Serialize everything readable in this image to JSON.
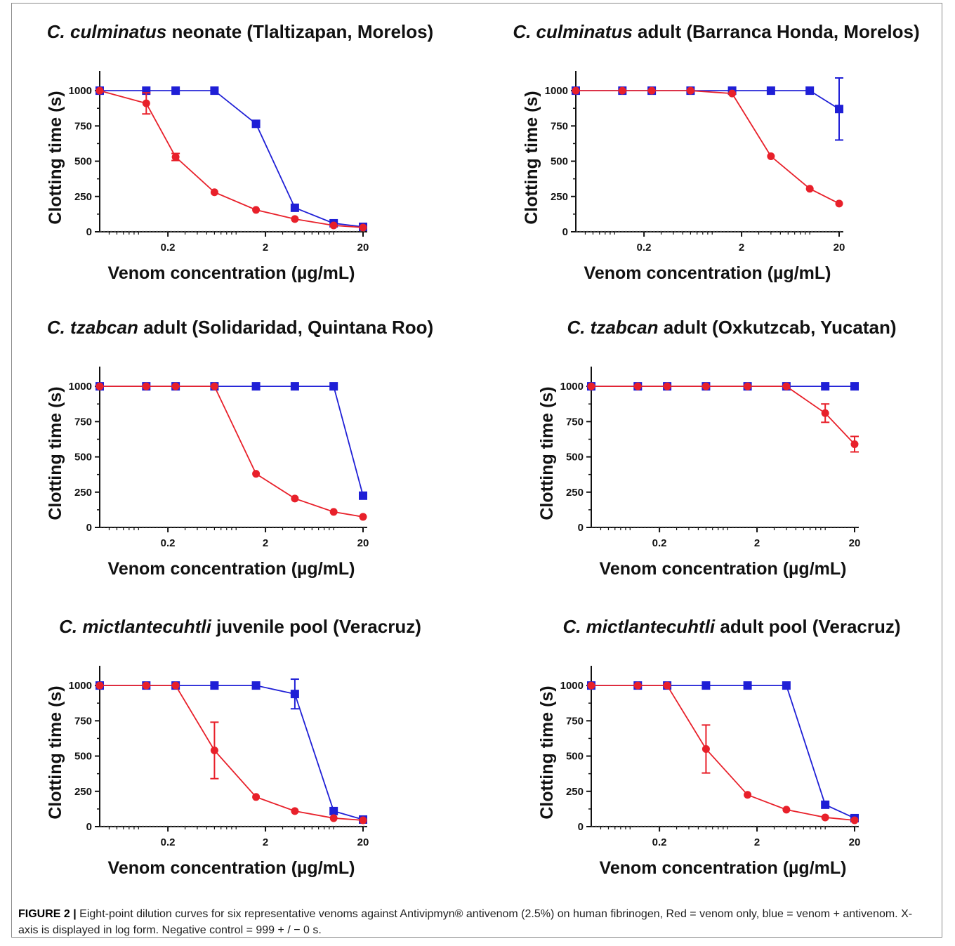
{
  "figure_label": "FIGURE 2 |",
  "caption": "Eight-point dilution curves for six representative venoms against Antivipmyn® antivenom (2.5%) on human fibrinogen, Red = venom only, blue = venom + antivenom. X-axis is displayed in log form. Negative control = 999 + / − 0 s.",
  "colors": {
    "venom_only": "#e8202a",
    "venom_plus_antivenom": "#1f1fd6",
    "axis": "#111111"
  },
  "chart_data": [
    {
      "type": "line",
      "title_italic": "C. culminatus",
      "title_rest": " neonate (Tlaltizapan, Morelos)",
      "xlabel": "Venom concentration (µg/mL)",
      "ylabel": "Clotting time (s)",
      "x_scale": "log",
      "xticks": [
        "0.2",
        "2",
        "20"
      ],
      "yticks": [
        "0",
        "250",
        "500",
        "750",
        "1000"
      ],
      "ylim": [
        0,
        1100
      ],
      "xlim": [
        0.04,
        20
      ],
      "series": [
        {
          "color": "venom_only",
          "x": [
            0.04,
            0.12,
            0.24,
            0.6,
            1.6,
            4,
            10,
            20
          ],
          "y": [
            1000,
            910,
            530,
            280,
            155,
            90,
            45,
            30
          ],
          "err": [
            0,
            75,
            25,
            0,
            0,
            0,
            0,
            0
          ]
        },
        {
          "color": "venom_plus_antivenom",
          "x": [
            0.04,
            0.12,
            0.24,
            0.6,
            1.6,
            4,
            10,
            20
          ],
          "y": [
            1000,
            1000,
            1000,
            1000,
            765,
            170,
            60,
            35
          ],
          "err": [
            0,
            0,
            0,
            0,
            0,
            0,
            0,
            0
          ]
        }
      ]
    },
    {
      "type": "line",
      "title_italic": "C. culminatus",
      "title_rest": " adult (Barranca Honda, Morelos)",
      "xlabel": "Venom concentration (µg/mL)",
      "ylabel": "Clotting time (s)",
      "x_scale": "log",
      "xticks": [
        "0.2",
        "2",
        "20"
      ],
      "yticks": [
        "0",
        "250",
        "500",
        "750",
        "1000"
      ],
      "ylim": [
        0,
        1100
      ],
      "xlim": [
        0.04,
        20
      ],
      "series": [
        {
          "color": "venom_only",
          "x": [
            0.04,
            0.12,
            0.24,
            0.6,
            1.6,
            4,
            10,
            20
          ],
          "y": [
            1000,
            1000,
            1000,
            1000,
            980,
            535,
            305,
            200
          ],
          "err": [
            0,
            0,
            0,
            0,
            0,
            0,
            0,
            0
          ]
        },
        {
          "color": "venom_plus_antivenom",
          "x": [
            0.04,
            0.12,
            0.24,
            0.6,
            1.6,
            4,
            10,
            20
          ],
          "y": [
            1000,
            1000,
            1000,
            1000,
            1000,
            1000,
            1000,
            870
          ],
          "err": [
            0,
            0,
            0,
            0,
            0,
            0,
            0,
            220
          ]
        }
      ]
    },
    {
      "type": "line",
      "title_italic": "C. tzabcan",
      "title_rest": " adult (Solidaridad, Quintana Roo)",
      "xlabel": "Venom concentration (µg/mL)",
      "ylabel": "Clotting time (s)",
      "x_scale": "log",
      "xticks": [
        "0.2",
        "2",
        "20"
      ],
      "yticks": [
        "0",
        "250",
        "500",
        "750",
        "1000"
      ],
      "ylim": [
        0,
        1100
      ],
      "xlim": [
        0.04,
        20
      ],
      "series": [
        {
          "color": "venom_only",
          "x": [
            0.04,
            0.12,
            0.24,
            0.6,
            1.6,
            4,
            10,
            20
          ],
          "y": [
            1000,
            1000,
            1000,
            1000,
            380,
            205,
            110,
            75
          ],
          "err": [
            0,
            0,
            0,
            0,
            0,
            0,
            0,
            0
          ]
        },
        {
          "color": "venom_plus_antivenom",
          "x": [
            0.04,
            0.12,
            0.24,
            0.6,
            1.6,
            4,
            10,
            20
          ],
          "y": [
            1000,
            1000,
            1000,
            1000,
            1000,
            1000,
            1000,
            225
          ],
          "err": [
            0,
            0,
            0,
            0,
            0,
            0,
            0,
            0
          ]
        }
      ]
    },
    {
      "type": "line",
      "title_italic": "C. tzabcan",
      "title_rest": " adult (Oxkutzcab, Yucatan)",
      "xlabel": "Venom concentration (µg/mL)",
      "ylabel": "Clotting time (s)",
      "x_scale": "log",
      "xticks": [
        "0.2",
        "2",
        "20"
      ],
      "yticks": [
        "0",
        "250",
        "500",
        "750",
        "1000"
      ],
      "ylim": [
        0,
        1100
      ],
      "xlim": [
        0.04,
        20
      ],
      "series": [
        {
          "color": "venom_only",
          "x": [
            0.04,
            0.12,
            0.24,
            0.6,
            1.6,
            4,
            10,
            20
          ],
          "y": [
            1000,
            1000,
            1000,
            1000,
            1000,
            1000,
            810,
            590
          ],
          "err": [
            0,
            0,
            0,
            0,
            0,
            0,
            65,
            55
          ]
        },
        {
          "color": "venom_plus_antivenom",
          "x": [
            0.04,
            0.12,
            0.24,
            0.6,
            1.6,
            4,
            10,
            20
          ],
          "y": [
            1000,
            1000,
            1000,
            1000,
            1000,
            1000,
            1000,
            1000
          ],
          "err": [
            0,
            0,
            0,
            0,
            0,
            0,
            0,
            0
          ]
        }
      ]
    },
    {
      "type": "line",
      "title_italic": "C. mictlantecuhtli",
      "title_rest": " juvenile pool (Veracruz)",
      "xlabel": "Venom concentration (µg/mL)",
      "ylabel": "Clotting time (s)",
      "x_scale": "log",
      "xticks": [
        "0.2",
        "2",
        "20"
      ],
      "yticks": [
        "0",
        "250",
        "500",
        "750",
        "1000"
      ],
      "ylim": [
        0,
        1100
      ],
      "xlim": [
        0.04,
        20
      ],
      "series": [
        {
          "color": "venom_only",
          "x": [
            0.04,
            0.12,
            0.24,
            0.6,
            1.6,
            4,
            10,
            20
          ],
          "y": [
            1000,
            1000,
            1000,
            540,
            210,
            110,
            60,
            45
          ],
          "err": [
            0,
            0,
            0,
            200,
            0,
            0,
            0,
            0
          ]
        },
        {
          "color": "venom_plus_antivenom",
          "x": [
            0.04,
            0.12,
            0.24,
            0.6,
            1.6,
            4,
            10,
            20
          ],
          "y": [
            1000,
            1000,
            1000,
            1000,
            1000,
            940,
            110,
            50
          ],
          "err": [
            0,
            0,
            0,
            0,
            0,
            105,
            0,
            0
          ]
        }
      ]
    },
    {
      "type": "line",
      "title_italic": "C. mictlantecuhtli",
      "title_rest": " adult pool (Veracruz)",
      "xlabel": "Venom concentration (µg/mL)",
      "ylabel": "Clotting time (s)",
      "x_scale": "log",
      "xticks": [
        "0.2",
        "2",
        "20"
      ],
      "yticks": [
        "0",
        "250",
        "500",
        "750",
        "1000"
      ],
      "ylim": [
        0,
        1100
      ],
      "xlim": [
        0.04,
        20
      ],
      "series": [
        {
          "color": "venom_only",
          "x": [
            0.04,
            0.12,
            0.24,
            0.6,
            1.6,
            4,
            10,
            20
          ],
          "y": [
            1000,
            1000,
            1000,
            550,
            225,
            120,
            65,
            45
          ],
          "err": [
            0,
            0,
            0,
            170,
            0,
            0,
            0,
            0
          ]
        },
        {
          "color": "venom_plus_antivenom",
          "x": [
            0.04,
            0.12,
            0.24,
            0.6,
            1.6,
            4,
            10,
            20
          ],
          "y": [
            1000,
            1000,
            1000,
            1000,
            1000,
            1000,
            155,
            60
          ],
          "err": [
            0,
            0,
            0,
            0,
            0,
            0,
            0,
            0
          ]
        }
      ]
    }
  ]
}
